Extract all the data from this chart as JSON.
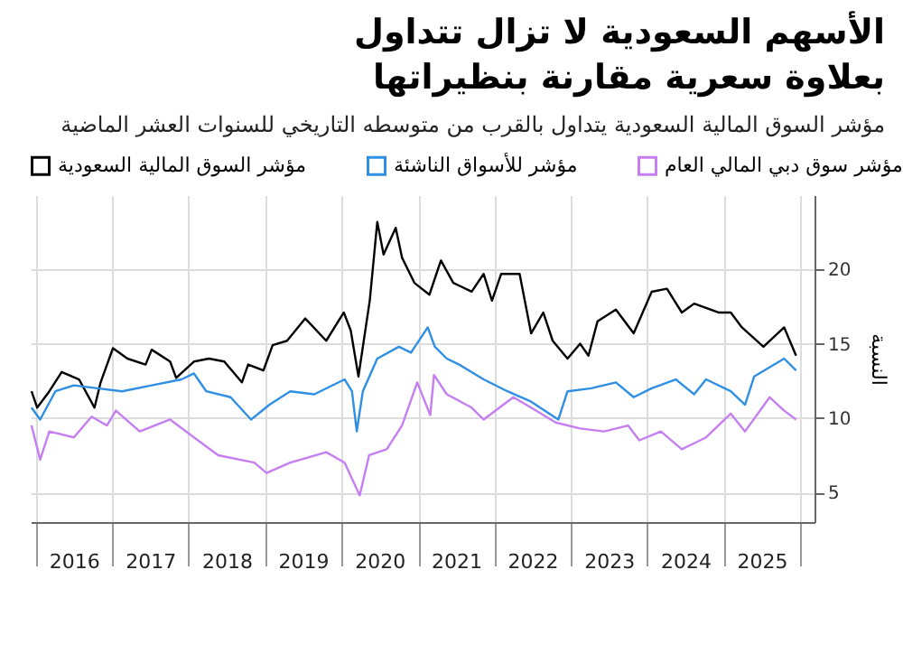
{
  "chart_data": {
    "type": "line",
    "title": "الأسهم السعودية لا تزال تتداول بعلاوة سعرية مقارنة بنظيراتها",
    "subtitle": "مؤشر السوق المالية السعودية يتداول بالقرب من متوسطه التاريخي للسنوات العشر الماضية",
    "ylabel": "النسبة",
    "xlim": [
      "2015-12-08",
      "2026-03-10"
    ],
    "ylim": [
      3,
      25
    ],
    "yticks": [
      5,
      10,
      15,
      20
    ],
    "xticks": [
      {
        "value": "2016-01-01",
        "label": null
      },
      {
        "value": "2016-07-01",
        "label": "2016"
      },
      {
        "value": "2017-01-01",
        "label": null
      },
      {
        "value": "2017-07-01",
        "label": "2017"
      },
      {
        "value": "2018-01-01",
        "label": null
      },
      {
        "value": "2018-07-01",
        "label": "2018"
      },
      {
        "value": "2019-01-01",
        "label": null
      },
      {
        "value": "2019-07-01",
        "label": "2019"
      },
      {
        "value": "2020-01-01",
        "label": null
      },
      {
        "value": "2020-07-01",
        "label": "2020"
      },
      {
        "value": "2021-01-01",
        "label": null
      },
      {
        "value": "2021-07-01",
        "label": "2021"
      },
      {
        "value": "2022-01-01",
        "label": null
      },
      {
        "value": "2022-07-01",
        "label": "2022"
      },
      {
        "value": "2023-01-01",
        "label": null
      },
      {
        "value": "2023-07-01",
        "label": "2023"
      },
      {
        "value": "2024-01-01",
        "label": null
      },
      {
        "value": "2024-07-01",
        "label": "2024"
      },
      {
        "value": "2025-01-01",
        "label": null
      },
      {
        "value": "2025-07-01",
        "label": "2025"
      },
      {
        "value": "2026-01-01",
        "label": null
      }
    ],
    "grid": true,
    "legend": "top",
    "series": [
      {
        "name": "مؤشر السوق المالية السعودية",
        "color": "#000000",
        "x": [
          "2015-12-12",
          "2016-01-08",
          "2016-03-06",
          "2016-05-04",
          "2016-07-26",
          "2016-10-08",
          "2016-11-06",
          "2017-01-04",
          "2017-03-14",
          "2017-06-09",
          "2017-07-08",
          "2017-10-04",
          "2017-11-02",
          "2018-01-26",
          "2018-04-08",
          "2018-06-20",
          "2018-09-12",
          "2018-10-12",
          "2018-12-24",
          "2019-02-06",
          "2019-04-16",
          "2019-07-12",
          "2019-10-20",
          "2020-01-12",
          "2020-02-14",
          "2020-03-22",
          "2020-04-28",
          "2020-05-15",
          "2020-06-20",
          "2020-07-20",
          "2020-09-16",
          "2020-10-16",
          "2020-12-14",
          "2021-02-24",
          "2021-04-20",
          "2021-06-18",
          "2021-09-14",
          "2021-11-10",
          "2021-12-20",
          "2022-02-02",
          "2022-05-01",
          "2022-06-25",
          "2022-08-22",
          "2022-10-06",
          "2022-12-16",
          "2023-02-14",
          "2023-03-26",
          "2023-05-08",
          "2023-08-04",
          "2023-10-28",
          "2024-01-22",
          "2024-04-04",
          "2024-06-14",
          "2024-08-12",
          "2024-12-06",
          "2025-02-03",
          "2025-03-28",
          "2025-07-09",
          "2025-10-16",
          "2025-12-12"
        ],
        "values": [
          11.8,
          10.7,
          11.8,
          13.1,
          12.6,
          10.7,
          12.4,
          14.7,
          14.0,
          13.6,
          14.6,
          13.8,
          12.7,
          13.8,
          14.0,
          13.8,
          12.4,
          13.6,
          13.2,
          14.9,
          15.2,
          16.7,
          15.2,
          17.1,
          15.9,
          12.8,
          16.3,
          17.9,
          23.2,
          21.0,
          22.8,
          20.8,
          19.1,
          18.3,
          20.6,
          19.1,
          18.5,
          19.7,
          17.9,
          19.7,
          19.7,
          15.7,
          17.1,
          15.2,
          14.0,
          15.0,
          14.2,
          16.5,
          17.3,
          15.7,
          18.5,
          18.7,
          17.1,
          17.7,
          17.1,
          17.1,
          16.1,
          14.8,
          16.1,
          14.2
        ]
      },
      {
        "name": "مؤشر للأسواق الناشئة",
        "color": "#2f8fe3",
        "x": [
          "2015-12-12",
          "2016-01-22",
          "2016-04-04",
          "2016-07-01",
          "2016-10-22",
          "2017-02-16",
          "2017-07-08",
          "2017-11-28",
          "2018-01-26",
          "2018-03-26",
          "2018-07-20",
          "2018-10-26",
          "2019-01-22",
          "2019-05-01",
          "2019-08-24",
          "2020-01-16",
          "2020-02-20",
          "2020-03-14",
          "2020-04-12",
          "2020-06-20",
          "2020-10-01",
          "2020-11-28",
          "2021-02-16",
          "2021-03-22",
          "2021-05-18",
          "2021-07-16",
          "2021-11-10",
          "2022-03-04",
          "2022-06-25",
          "2022-11-02",
          "2022-12-16",
          "2023-04-08",
          "2023-08-04",
          "2023-10-28",
          "2024-01-22",
          "2024-05-16",
          "2024-08-12",
          "2024-10-08",
          "2025-02-03",
          "2025-04-12",
          "2025-05-26",
          "2025-10-16",
          "2025-12-12"
        ],
        "values": [
          10.7,
          9.9,
          11.8,
          12.2,
          12.0,
          11.8,
          12.2,
          12.6,
          13.0,
          11.8,
          11.4,
          9.9,
          10.9,
          11.8,
          11.6,
          12.6,
          11.8,
          9.1,
          11.8,
          14.0,
          14.8,
          14.4,
          16.1,
          14.8,
          14.0,
          13.6,
          12.6,
          11.8,
          11.1,
          9.9,
          11.8,
          12.0,
          12.4,
          11.4,
          12.0,
          12.6,
          11.6,
          12.6,
          11.8,
          10.9,
          12.8,
          14.0,
          13.2
        ]
      },
      {
        "name": "مؤشر سوق دبي المالي العام",
        "color": "#c57ff0",
        "x": [
          "2015-12-12",
          "2016-01-22",
          "2016-03-06",
          "2016-07-01",
          "2016-09-24",
          "2016-12-06",
          "2017-01-18",
          "2017-05-12",
          "2017-10-04",
          "2018-01-26",
          "2018-05-22",
          "2018-11-10",
          "2019-01-08",
          "2019-05-01",
          "2019-10-20",
          "2020-01-16",
          "2020-03-28",
          "2020-05-12",
          "2020-08-04",
          "2020-10-16",
          "2020-12-28",
          "2021-02-28",
          "2021-03-18",
          "2021-05-18",
          "2021-09-14",
          "2021-11-10",
          "2022-04-01",
          "2022-06-25",
          "2022-10-20",
          "2023-02-14",
          "2023-06-09",
          "2023-10-01",
          "2023-11-24",
          "2024-03-06",
          "2024-06-14",
          "2024-10-08",
          "2025-02-03",
          "2025-04-12",
          "2025-08-08",
          "2025-10-16",
          "2025-12-12"
        ],
        "values": [
          9.5,
          7.2,
          9.1,
          8.7,
          10.1,
          9.5,
          10.5,
          9.1,
          9.9,
          8.7,
          7.5,
          7.0,
          6.3,
          7.0,
          7.7,
          7.0,
          4.8,
          7.5,
          7.9,
          9.5,
          12.4,
          10.2,
          12.9,
          11.6,
          10.7,
          9.9,
          11.4,
          10.7,
          9.7,
          9.3,
          9.1,
          9.5,
          8.5,
          9.1,
          7.9,
          8.7,
          10.3,
          9.1,
          11.4,
          10.5,
          9.9
        ]
      }
    ]
  }
}
